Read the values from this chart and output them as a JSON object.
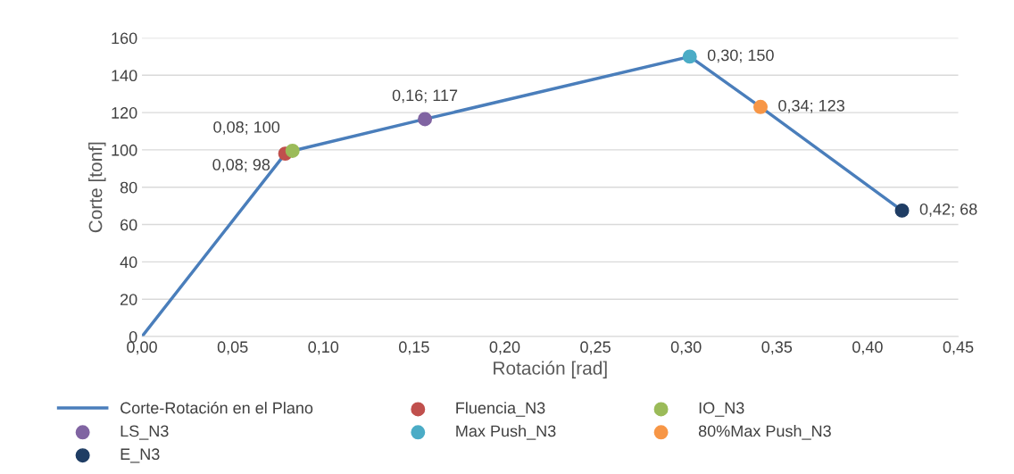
{
  "chart_data": {
    "type": "line",
    "xlabel": "Rotación [rad]",
    "ylabel": "Corte [tonf]",
    "xlim": [
      0,
      0.45
    ],
    "ylim": [
      0,
      160
    ],
    "xticks": [
      {
        "value": 0,
        "label": "0,00"
      },
      {
        "value": 0.05,
        "label": "0,05"
      },
      {
        "value": 0.1,
        "label": "0,10"
      },
      {
        "value": 0.15,
        "label": "0,15"
      },
      {
        "value": 0.2,
        "label": "0,20"
      },
      {
        "value": 0.25,
        "label": "0,25"
      },
      {
        "value": 0.3,
        "label": "0,30"
      },
      {
        "value": 0.35,
        "label": "0,35"
      },
      {
        "value": 0.4,
        "label": "0,40"
      },
      {
        "value": 0.45,
        "label": "0,45"
      }
    ],
    "yticks": [
      0,
      20,
      40,
      60,
      80,
      100,
      120,
      140,
      160
    ],
    "grid": "y",
    "legend": "bottom",
    "series": [
      {
        "name": "Corte-Rotación en el Plano",
        "color": "#4a7ebb",
        "x": [
          0,
          0.079,
          0.083,
          0.156,
          0.302,
          0.341,
          0.419
        ],
        "values": [
          0,
          98,
          99.5,
          116.5,
          150,
          123,
          67.5
        ]
      },
      {
        "name": "Fluencia_N3",
        "type": "scatter",
        "color": "#c0504d",
        "x": [
          0.079
        ],
        "values": [
          98
        ],
        "value_labels": [
          "0,08; 98"
        ]
      },
      {
        "name": "IO_N3",
        "type": "scatter",
        "color": "#9bbb59",
        "x": [
          0.083
        ],
        "values": [
          99.5
        ],
        "value_labels": [
          "0,08; 100"
        ]
      },
      {
        "name": "LS_N3",
        "type": "scatter",
        "color": "#8064a2",
        "x": [
          0.156
        ],
        "values": [
          116.5
        ],
        "value_labels": [
          "0,16; 117"
        ]
      },
      {
        "name": "Max Push_N3",
        "type": "scatter",
        "color": "#4bacc6",
        "x": [
          0.302
        ],
        "values": [
          150
        ],
        "value_labels": [
          "0,30; 150"
        ]
      },
      {
        "name": "80%Max Push_N3",
        "type": "scatter",
        "color": "#f79646",
        "x": [
          0.341
        ],
        "values": [
          123
        ],
        "value_labels": [
          "0,34; 123"
        ]
      },
      {
        "name": "E_N3",
        "type": "scatter",
        "color": "#1f3d64",
        "x": [
          0.419
        ],
        "values": [
          67.5
        ],
        "value_labels": [
          "0,42; 68"
        ]
      }
    ]
  }
}
